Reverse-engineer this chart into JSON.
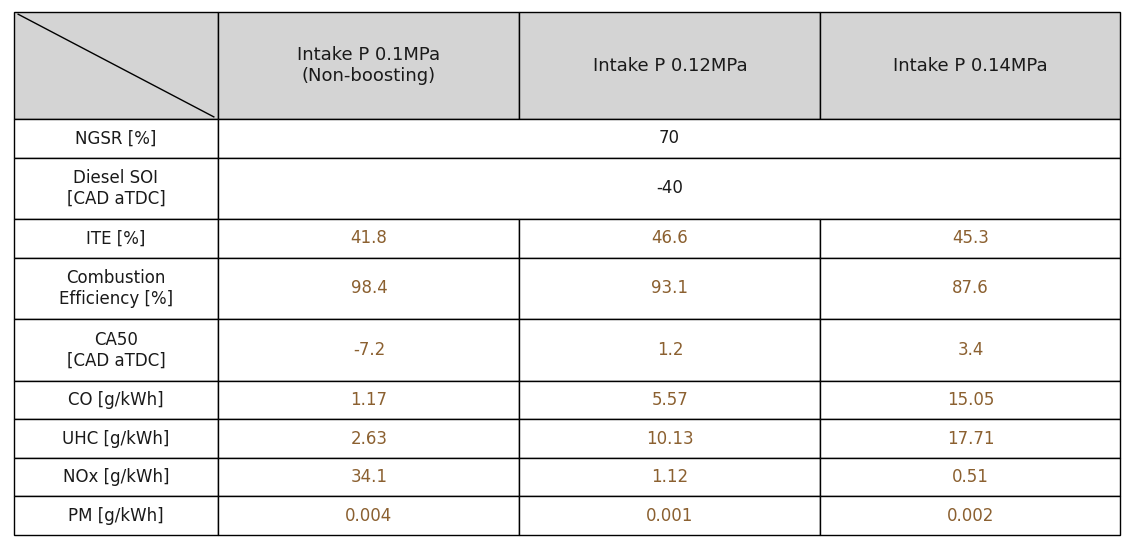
{
  "header_bg": "#d4d4d4",
  "row_bg_white": "#ffffff",
  "border_color": "#000000",
  "text_color_black": "#1a1a1a",
  "text_color_data": "#8b6030",
  "col_headers": [
    "Intake P 0.1MPa\n(Non-boosting)",
    "Intake P 0.12MPa",
    "Intake P 0.14MPa"
  ],
  "row_labels": [
    "NGSR [%]",
    "Diesel SOI\n[CAD aTDC]",
    "ITE [%]",
    "Combustion\nEfficiency [%]",
    "CA50\n[CAD aTDC]",
    "CO [g/kWh]",
    "UHC [g/kWh]",
    "NOx [g/kWh]",
    "PM [g/kWh]"
  ],
  "data": [
    [
      "70",
      "",
      ""
    ],
    [
      "-40",
      "",
      ""
    ],
    [
      "41.8",
      "46.6",
      "45.3"
    ],
    [
      "98.4",
      "93.1",
      "87.6"
    ],
    [
      "-7.2",
      "1.2",
      "3.4"
    ],
    [
      "1.17",
      "5.57",
      "15.05"
    ],
    [
      "2.63",
      "10.13",
      "17.71"
    ],
    [
      "34.1",
      "1.12",
      "0.51"
    ],
    [
      "0.004",
      "0.001",
      "0.002"
    ]
  ],
  "merged_rows": [
    0,
    1
  ],
  "font_size_header": 13,
  "font_size_cell": 12,
  "font_size_label": 12,
  "lw": 1.0
}
